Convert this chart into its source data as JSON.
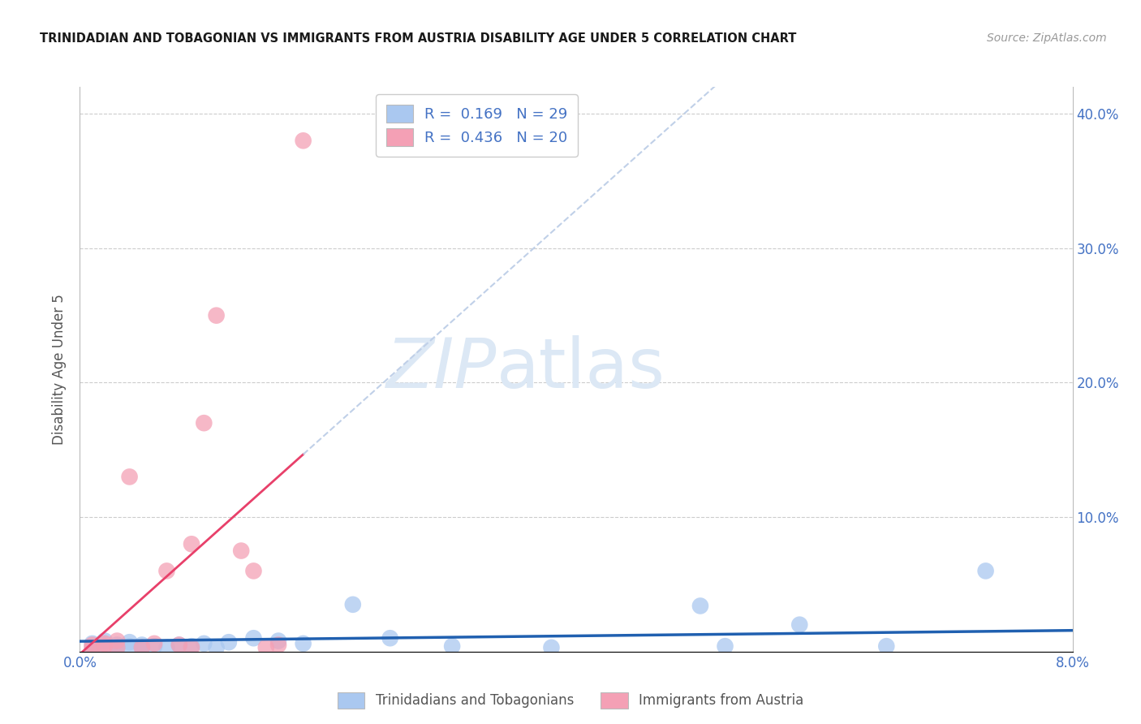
{
  "title": "TRINIDADIAN AND TOBAGONIAN VS IMMIGRANTS FROM AUSTRIA DISABILITY AGE UNDER 5 CORRELATION CHART",
  "source": "Source: ZipAtlas.com",
  "ylabel": "Disability Age Under 5",
  "xlim": [
    0.0,
    0.08
  ],
  "ylim": [
    0.0,
    0.42
  ],
  "xticks": [
    0.0,
    0.01,
    0.02,
    0.03,
    0.04,
    0.05,
    0.06,
    0.07,
    0.08
  ],
  "xtick_labels": [
    "0.0%",
    "",
    "",
    "",
    "",
    "",
    "",
    "",
    "8.0%"
  ],
  "yticks": [
    0.0,
    0.1,
    0.2,
    0.3,
    0.4
  ],
  "ytick_labels_right": [
    "",
    "10.0%",
    "20.0%",
    "30.0%",
    "40.0%"
  ],
  "blue_R": 0.169,
  "blue_N": 29,
  "pink_R": 0.436,
  "pink_N": 20,
  "blue_color": "#aac8f0",
  "pink_color": "#f4a0b5",
  "blue_line_color": "#2060b0",
  "pink_line_color": "#e8406a",
  "dash_line_color": "#c0d0e8",
  "background_color": "#ffffff",
  "grid_color": "#cccccc",
  "watermark_color": "#dce8f5",
  "blue_x": [
    0.001,
    0.001,
    0.002,
    0.002,
    0.003,
    0.003,
    0.004,
    0.004,
    0.005,
    0.005,
    0.006,
    0.007,
    0.008,
    0.009,
    0.01,
    0.011,
    0.012,
    0.014,
    0.016,
    0.018,
    0.022,
    0.025,
    0.03,
    0.038,
    0.05,
    0.052,
    0.058,
    0.065,
    0.073
  ],
  "blue_y": [
    0.003,
    0.006,
    0.004,
    0.008,
    0.003,
    0.005,
    0.004,
    0.007,
    0.003,
    0.005,
    0.004,
    0.003,
    0.005,
    0.004,
    0.006,
    0.003,
    0.007,
    0.01,
    0.008,
    0.006,
    0.035,
    0.01,
    0.004,
    0.003,
    0.034,
    0.004,
    0.02,
    0.004,
    0.06
  ],
  "pink_x": [
    0.001,
    0.001,
    0.002,
    0.002,
    0.003,
    0.003,
    0.004,
    0.005,
    0.006,
    0.007,
    0.008,
    0.009,
    0.009,
    0.01,
    0.011,
    0.013,
    0.014,
    0.015,
    0.016,
    0.018
  ],
  "pink_y": [
    0.003,
    0.005,
    0.004,
    0.006,
    0.003,
    0.008,
    0.13,
    0.003,
    0.006,
    0.06,
    0.005,
    0.003,
    0.08,
    0.17,
    0.25,
    0.075,
    0.06,
    0.003,
    0.005,
    0.38
  ],
  "legend_label_blue": "Trinidadians and Tobagonians",
  "legend_label_pink": "Immigrants from Austria",
  "title_color": "#1a1a1a",
  "axis_label_color": "#555555",
  "tick_color": "#4472c4",
  "legend_R_color": "#4472c4"
}
